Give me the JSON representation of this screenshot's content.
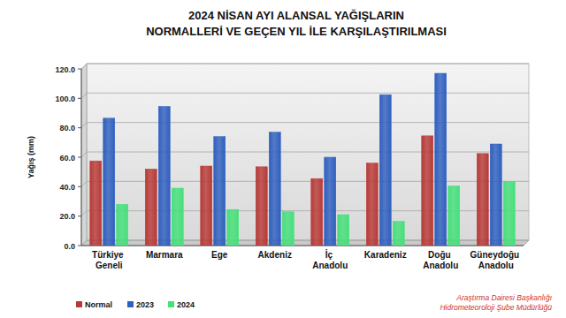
{
  "chart_data": {
    "type": "bar",
    "title": "2024 NİSAN AYI ALANSAL YAĞIŞLARIN",
    "subtitle": "NORMALLERİ VE GEÇEN YIL İLE KARŞILAŞTIRILMASI",
    "y_label": "Yağış (mm)",
    "annotations": [
      "Araştırma Dairesi Başkanlığı",
      "Hidrometeoroloji Şube Müdürlüğü"
    ],
    "categories": [
      "Türkiye Geneli",
      "Marmara",
      "Ege",
      "Akdeniz",
      "İç Anadolu",
      "Karadeniz",
      "Doğu Anadolu",
      "Güneydoğu Anadolu"
    ],
    "series": [
      {
        "name": "Normal",
        "color": "#b83a37",
        "values": [
          57.5,
          52,
          54,
          53.5,
          45.5,
          56,
          74.5,
          62.5
        ]
      },
      {
        "name": "2023",
        "color": "#2f5fbf",
        "values": [
          86.5,
          94.5,
          74,
          77,
          60,
          102.5,
          117,
          69
        ]
      },
      {
        "name": "2024",
        "color": "#45e07a",
        "values": [
          28,
          39,
          24.5,
          23,
          21,
          16.5,
          40.5,
          43.5
        ]
      }
    ],
    "ylim": [
      0,
      120
    ],
    "yticks": [
      {
        "value": 0,
        "label": "0.0"
      },
      {
        "value": 20,
        "label": "20.0"
      },
      {
        "value": 40,
        "label": "40.0"
      },
      {
        "value": 60,
        "label": "60.0"
      },
      {
        "value": 80,
        "label": "80.0"
      },
      {
        "value": 100,
        "label": "100.0"
      },
      {
        "value": 120,
        "label": "120.0"
      }
    ],
    "grid": true,
    "legend": "bottom"
  }
}
